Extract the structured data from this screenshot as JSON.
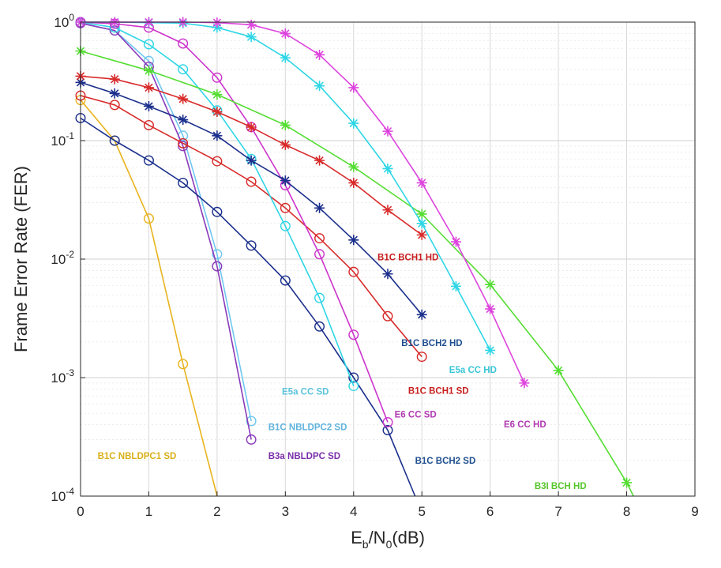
{
  "chart_data": {
    "type": "line",
    "title": "",
    "xlabel": "E_b/N_0(dB)",
    "xlabel_main": "E",
    "xlabel_sub1": "b",
    "xlabel_mid": "/N",
    "xlabel_sub2": "0",
    "xlabel_tail": "(dB)",
    "ylabel": "Frame Error Rate (FER)",
    "xlim": [
      0,
      9
    ],
    "ylim": [
      0.0001,
      1
    ],
    "yscale": "log",
    "grid": true,
    "x_ticks": [
      "0",
      "1",
      "2",
      "3",
      "4",
      "5",
      "6",
      "7",
      "8",
      "9"
    ],
    "y_ticks": [
      {
        "base": "10",
        "exp": "0"
      },
      {
        "base": "10",
        "exp": "-1"
      },
      {
        "base": "10",
        "exp": "-2"
      },
      {
        "base": "10",
        "exp": "-3"
      },
      {
        "base": "10",
        "exp": "-4"
      }
    ],
    "series": [
      {
        "name": "B1C NBLDPC1 SD",
        "color": "#e8b31e",
        "marker": "circle",
        "x": [
          0,
          0.5,
          1,
          1.5,
          2
        ],
        "y": [
          0.22,
          0.1,
          0.022,
          0.0013,
          0.0001
        ]
      },
      {
        "name": "B1C NBLDPC2 SD",
        "color": "#6fc7f0",
        "marker": "circle",
        "x": [
          0,
          0.5,
          1,
          1.5,
          2,
          2.5
        ],
        "y": [
          0.98,
          0.85,
          0.47,
          0.11,
          0.011,
          0.00043
        ]
      },
      {
        "name": "B3a NBLDPC SD",
        "color": "#8a3ab9",
        "marker": "circle",
        "x": [
          0,
          0.5,
          1,
          1.5,
          2,
          2.5
        ],
        "y": [
          0.98,
          0.85,
          0.42,
          0.09,
          0.0087,
          0.0003
        ]
      },
      {
        "name": "B1C BCH2 SD",
        "color": "#1b2f8c",
        "marker": "circle",
        "x": [
          0,
          0.5,
          1,
          1.5,
          2,
          2.5,
          3,
          3.5,
          4,
          4.5,
          4.9
        ],
        "y": [
          0.155,
          0.1,
          0.068,
          0.044,
          0.025,
          0.013,
          0.0066,
          0.0027,
          0.001,
          0.00036,
          0.0001
        ]
      },
      {
        "name": "B1C BCH1 SD",
        "color": "#d82a2a",
        "marker": "circle",
        "x": [
          0,
          0.5,
          1,
          1.5,
          2,
          2.5,
          3,
          3.5,
          4,
          4.5,
          5
        ],
        "y": [
          0.24,
          0.2,
          0.135,
          0.095,
          0.067,
          0.045,
          0.027,
          0.015,
          0.0078,
          0.0033,
          0.0015
        ]
      },
      {
        "name": "E5a CC SD",
        "color": "#2ed6e6",
        "marker": "circle",
        "x": [
          0,
          0.5,
          1,
          1.5,
          2,
          2.5,
          3,
          3.5,
          4
        ],
        "y": [
          1.0,
          0.9,
          0.65,
          0.4,
          0.18,
          0.07,
          0.019,
          0.0047,
          0.00085
        ]
      },
      {
        "name": "E6 CC SD",
        "color": "#cc33cc",
        "marker": "circle",
        "x": [
          0,
          0.5,
          1,
          1.5,
          2,
          2.5,
          3,
          3.5,
          4,
          4.5
        ],
        "y": [
          1.0,
          0.97,
          0.9,
          0.66,
          0.34,
          0.13,
          0.042,
          0.011,
          0.0023,
          0.00042
        ]
      },
      {
        "name": "B1C BCH2 HD",
        "color": "#1b2f8c",
        "marker": "star",
        "x": [
          0,
          0.5,
          1,
          1.5,
          2,
          2.5,
          3,
          3.5,
          4,
          4.5,
          5
        ],
        "y": [
          0.31,
          0.25,
          0.195,
          0.15,
          0.11,
          0.068,
          0.046,
          0.027,
          0.0145,
          0.0075,
          0.0034
        ]
      },
      {
        "name": "B1C BCH1 HD",
        "color": "#d82a2a",
        "marker": "star",
        "x": [
          0,
          0.5,
          1,
          1.5,
          2,
          2.5,
          3,
          3.5,
          4,
          4.5,
          5
        ],
        "y": [
          0.35,
          0.33,
          0.28,
          0.225,
          0.175,
          0.13,
          0.092,
          0.068,
          0.044,
          0.026,
          0.016
        ]
      },
      {
        "name": "B3I BCH HD",
        "color": "#55dd33",
        "marker": "star",
        "x": [
          0,
          1,
          2,
          3,
          4,
          5,
          6,
          7,
          8,
          8.1
        ],
        "y": [
          0.57,
          0.39,
          0.245,
          0.135,
          0.06,
          0.024,
          0.0061,
          0.00115,
          0.00013,
          0.0001
        ]
      },
      {
        "name": "E5a CC HD",
        "color": "#2ed6e6",
        "marker": "star",
        "x": [
          0,
          0.5,
          1,
          1.5,
          2,
          2.5,
          3,
          3.5,
          4,
          4.5,
          5,
          5.5,
          6
        ],
        "y": [
          1.0,
          1.0,
          0.99,
          0.98,
          0.9,
          0.75,
          0.5,
          0.29,
          0.14,
          0.058,
          0.02,
          0.0059,
          0.0017
        ]
      },
      {
        "name": "E6 CC HD",
        "color": "#dd44dd",
        "marker": "star",
        "x": [
          0,
          0.5,
          1,
          1.5,
          2,
          2.5,
          3,
          3.5,
          4,
          4.5,
          5,
          5.5,
          6,
          6.5
        ],
        "y": [
          1.0,
          1.0,
          1.0,
          1.0,
          0.99,
          0.95,
          0.8,
          0.53,
          0.28,
          0.12,
          0.044,
          0.014,
          0.0038,
          0.0009
        ]
      }
    ],
    "annotations": [
      {
        "text": "B1C BCH1 HD",
        "color": "#c81e1e",
        "x": 4.35,
        "y": 0.0098
      },
      {
        "text": "B1C BCH2 HD",
        "color": "#1f4f8f",
        "x": 4.7,
        "y": 0.00185
      },
      {
        "text": "E5a CC HD",
        "color": "#39c6d6",
        "x": 5.4,
        "y": 0.0011
      },
      {
        "text": "B1C BCH1 SD",
        "color": "#c81e1e",
        "x": 4.8,
        "y": 0.00073
      },
      {
        "text": "E5a CC SD",
        "color": "#5bc3dd",
        "x": 2.95,
        "y": 0.00072
      },
      {
        "text": "E6 CC SD",
        "color": "#b03ab0",
        "x": 4.6,
        "y": 0.00046
      },
      {
        "text": "E6 CC HD",
        "color": "#b03ab0",
        "x": 6.2,
        "y": 0.00038
      },
      {
        "text": "B1C NBLDPC2 SD",
        "color": "#5fb3dd",
        "x": 2.75,
        "y": 0.00036
      },
      {
        "text": "B1C NBLDPC1 SD",
        "color": "#d8b019",
        "x": 0.25,
        "y": 0.000205
      },
      {
        "text": "B3a NBLDPC SD",
        "color": "#7a2ea9",
        "x": 2.75,
        "y": 0.000205
      },
      {
        "text": "B1C BCH2 SD",
        "color": "#1f4f8f",
        "x": 4.9,
        "y": 0.000187
      },
      {
        "text": "B3I BCH HD",
        "color": "#55c62a",
        "x": 6.65,
        "y": 0.000115
      }
    ]
  }
}
